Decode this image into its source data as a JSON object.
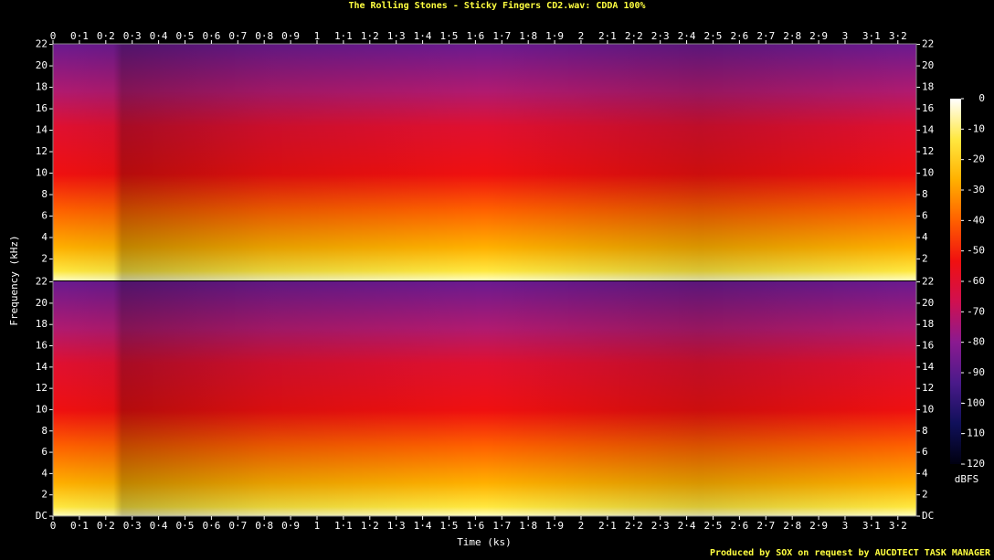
{
  "chart_data": {
    "type": "spectrogram",
    "title": "The Rolling Stones - Sticky Fingers CD2.wav: CDDA 100%",
    "xlabel": "Time (ks)",
    "ylabel": "Frequency (kHz)",
    "footer": "Produced by SOX on request by AUCDTECT TASK MANAGER",
    "xlim": [
      0,
      3.27
    ],
    "xticks": [
      0,
      {
        "value": 0.1,
        "label": "0·1"
      },
      {
        "value": 0.2,
        "label": "0·2"
      },
      {
        "value": 0.3,
        "label": "0·3"
      },
      {
        "value": 0.4,
        "label": "0·4"
      },
      {
        "value": 0.5,
        "label": "0·5"
      },
      {
        "value": 0.6,
        "label": "0·6"
      },
      {
        "value": 0.7,
        "label": "0·7"
      },
      {
        "value": 0.8,
        "label": "0·8"
      },
      {
        "value": 0.9,
        "label": "0·9"
      },
      1,
      {
        "value": 1.1,
        "label": "1·1"
      },
      {
        "value": 1.2,
        "label": "1·2"
      },
      {
        "value": 1.3,
        "label": "1·3"
      },
      {
        "value": 1.4,
        "label": "1·4"
      },
      {
        "value": 1.5,
        "label": "1·5"
      },
      {
        "value": 1.6,
        "label": "1·6"
      },
      {
        "value": 1.7,
        "label": "1·7"
      },
      {
        "value": 1.8,
        "label": "1·8"
      },
      {
        "value": 1.9,
        "label": "1·9"
      },
      2,
      {
        "value": 2.1,
        "label": "2·1"
      },
      {
        "value": 2.2,
        "label": "2·2"
      },
      {
        "value": 2.3,
        "label": "2·3"
      },
      {
        "value": 2.4,
        "label": "2·4"
      },
      {
        "value": 2.5,
        "label": "2·5"
      },
      {
        "value": 2.6,
        "label": "2·6"
      },
      {
        "value": 2.7,
        "label": "2·7"
      },
      {
        "value": 2.8,
        "label": "2·8"
      },
      {
        "value": 2.9,
        "label": "2·9"
      },
      3,
      {
        "value": 3.1,
        "label": "3·1"
      },
      {
        "value": 3.2,
        "label": "3·2"
      }
    ],
    "channels": [
      {
        "ylim": [
          0,
          22.05
        ],
        "yticks": [
          2,
          4,
          6,
          8,
          10,
          12,
          14,
          16,
          18,
          20,
          22
        ]
      },
      {
        "ylim": [
          0,
          22.05
        ],
        "yticks": [
          {
            "value": 0,
            "label": "DC"
          },
          2,
          4,
          6,
          8,
          10,
          12,
          14,
          16,
          18,
          20,
          22
        ]
      }
    ],
    "colorbar": {
      "label": "dBFS",
      "clim": [
        -120,
        0
      ],
      "ticks": [
        -120,
        -110,
        -100,
        -90,
        -80,
        -70,
        -60,
        -50,
        -40,
        -30,
        -20,
        -10,
        0
      ],
      "colormap": [
        "#000010",
        "#10105a",
        "#4a1a8a",
        "#8a1a90",
        "#d01050",
        "#f01010",
        "#ff6000",
        "#ffb000",
        "#ffe840",
        "#ffffff"
      ]
    }
  }
}
